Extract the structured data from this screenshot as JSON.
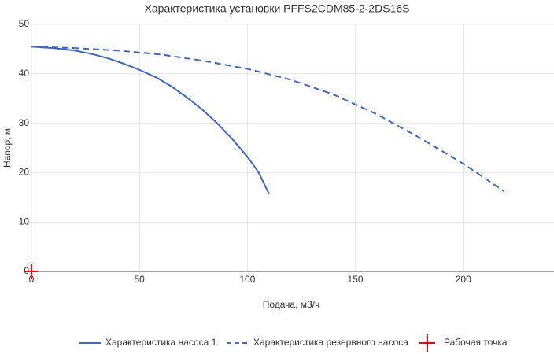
{
  "chart_data": {
    "type": "line",
    "title": "Характеристика установки PFFS2CDM85-2-2DS16S",
    "x_label": "Подача, м3/ч",
    "y_label": "Напор, м",
    "xlim": [
      0,
      242
    ],
    "xticks": [
      0,
      50,
      100,
      150,
      200
    ],
    "ylim": [
      0,
      50
    ],
    "yticks": [
      0,
      10,
      20,
      30,
      40,
      50
    ],
    "grid": true,
    "legend": "bottom",
    "series": [
      {
        "name": "Характеристика насоса 1",
        "color": "#3c67d0",
        "style": "solid",
        "x": [
          0,
          10,
          20,
          27,
          35,
          43,
          50,
          58,
          65,
          72,
          79,
          86,
          93,
          100,
          105,
          110
        ],
        "values": [
          45.5,
          45.2,
          44.7,
          44.1,
          43.2,
          42,
          40.8,
          39.2,
          37.4,
          35.2,
          32.8,
          30,
          26.8,
          23.2,
          20.2,
          15.7
        ]
      },
      {
        "name": "Характеристика резервного насоса",
        "color": "#3c67d0",
        "style": "dash",
        "x": [
          0,
          20,
          40,
          60,
          80,
          100,
          120,
          140,
          160,
          180,
          200,
          219
        ],
        "values": [
          45.5,
          45.2,
          44.7,
          43.9,
          42.6,
          41,
          38.8,
          35.8,
          31.8,
          27,
          21.8,
          16.2
        ]
      },
      {
        "name": "Рабочая точка",
        "color": "#ff0000",
        "style": "cross",
        "x": [
          0
        ],
        "values": [
          0
        ]
      }
    ]
  }
}
